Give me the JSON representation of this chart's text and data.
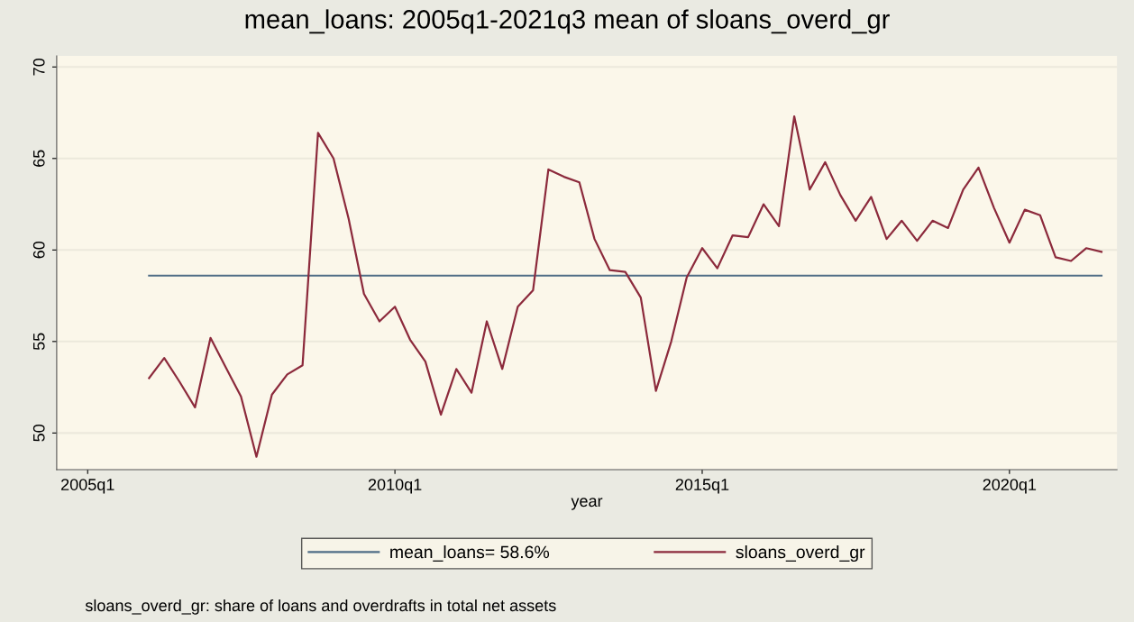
{
  "chart_data": {
    "type": "line",
    "title": "mean_loans: 2005q1-2021q3 mean of sloans_overd_gr",
    "xlabel": "year",
    "series": [
      {
        "name": "mean_loans= 58.6%",
        "color": "#4f6d86",
        "x": [
          "2006-01",
          "2021-07"
        ],
        "values": [
          58.6,
          58.6
        ]
      },
      {
        "name": "sloans_overd_gr",
        "color": "#8c2a3c",
        "x": [
          "2006-01",
          "2006-04",
          "2006-07",
          "2006-10",
          "2007-01",
          "2007-04",
          "2007-07",
          "2007-10",
          "2008-01",
          "2008-04",
          "2008-07",
          "2008-10",
          "2009-01",
          "2009-04",
          "2009-07",
          "2009-10",
          "2010-01",
          "2010-04",
          "2010-07",
          "2010-10",
          "2011-01",
          "2011-04",
          "2011-07",
          "2011-10",
          "2012-01",
          "2012-04",
          "2012-07",
          "2012-10",
          "2013-01",
          "2013-04",
          "2013-07",
          "2013-10",
          "2014-01",
          "2014-04",
          "2014-07",
          "2014-10",
          "2015-01",
          "2015-04",
          "2015-07",
          "2015-10",
          "2016-01",
          "2016-04",
          "2016-07",
          "2016-10",
          "2017-01",
          "2017-04",
          "2017-07",
          "2017-10",
          "2018-01",
          "2018-04",
          "2018-07",
          "2018-10",
          "2019-01",
          "2019-04",
          "2019-07",
          "2019-10",
          "2020-01",
          "2020-04",
          "2020-07",
          "2020-10",
          "2021-01",
          "2021-04",
          "2021-07"
        ],
        "values": [
          53.0,
          54.1,
          52.8,
          51.4,
          55.2,
          53.6,
          52.0,
          48.7,
          52.1,
          53.2,
          53.7,
          66.4,
          65.0,
          61.7,
          57.6,
          56.1,
          56.9,
          55.1,
          53.9,
          51.0,
          53.5,
          52.2,
          56.1,
          53.5,
          56.9,
          57.8,
          64.4,
          64.0,
          63.7,
          60.6,
          58.9,
          58.8,
          57.4,
          52.3,
          55.0,
          58.5,
          60.1,
          59.0,
          60.8,
          60.7,
          62.5,
          61.3,
          67.3,
          63.3,
          64.8,
          63.0,
          61.6,
          62.9,
          60.6,
          61.6,
          60.5,
          61.6,
          61.2,
          63.3,
          64.5,
          62.3,
          60.4,
          62.2,
          61.9,
          59.6,
          59.4,
          60.1,
          59.9
        ]
      }
    ],
    "xlim": [
      "2004-07",
      "2021-10"
    ],
    "xticks": [
      {
        "value": "2005-01",
        "label": "2005q1"
      },
      {
        "value": "2010-01",
        "label": "2010q1"
      },
      {
        "value": "2015-01",
        "label": "2015q1"
      },
      {
        "value": "2020-01",
        "label": "2020q1"
      }
    ],
    "ylim": [
      48,
      70.6
    ],
    "yticks": [
      50,
      55,
      60,
      65,
      70
    ],
    "grid": "y",
    "legend": "bottom",
    "line_style": "solid",
    "marker": "none",
    "annotations": [
      "sloans_overd_gr: share of loans and overdrafts in total net assets"
    ]
  }
}
